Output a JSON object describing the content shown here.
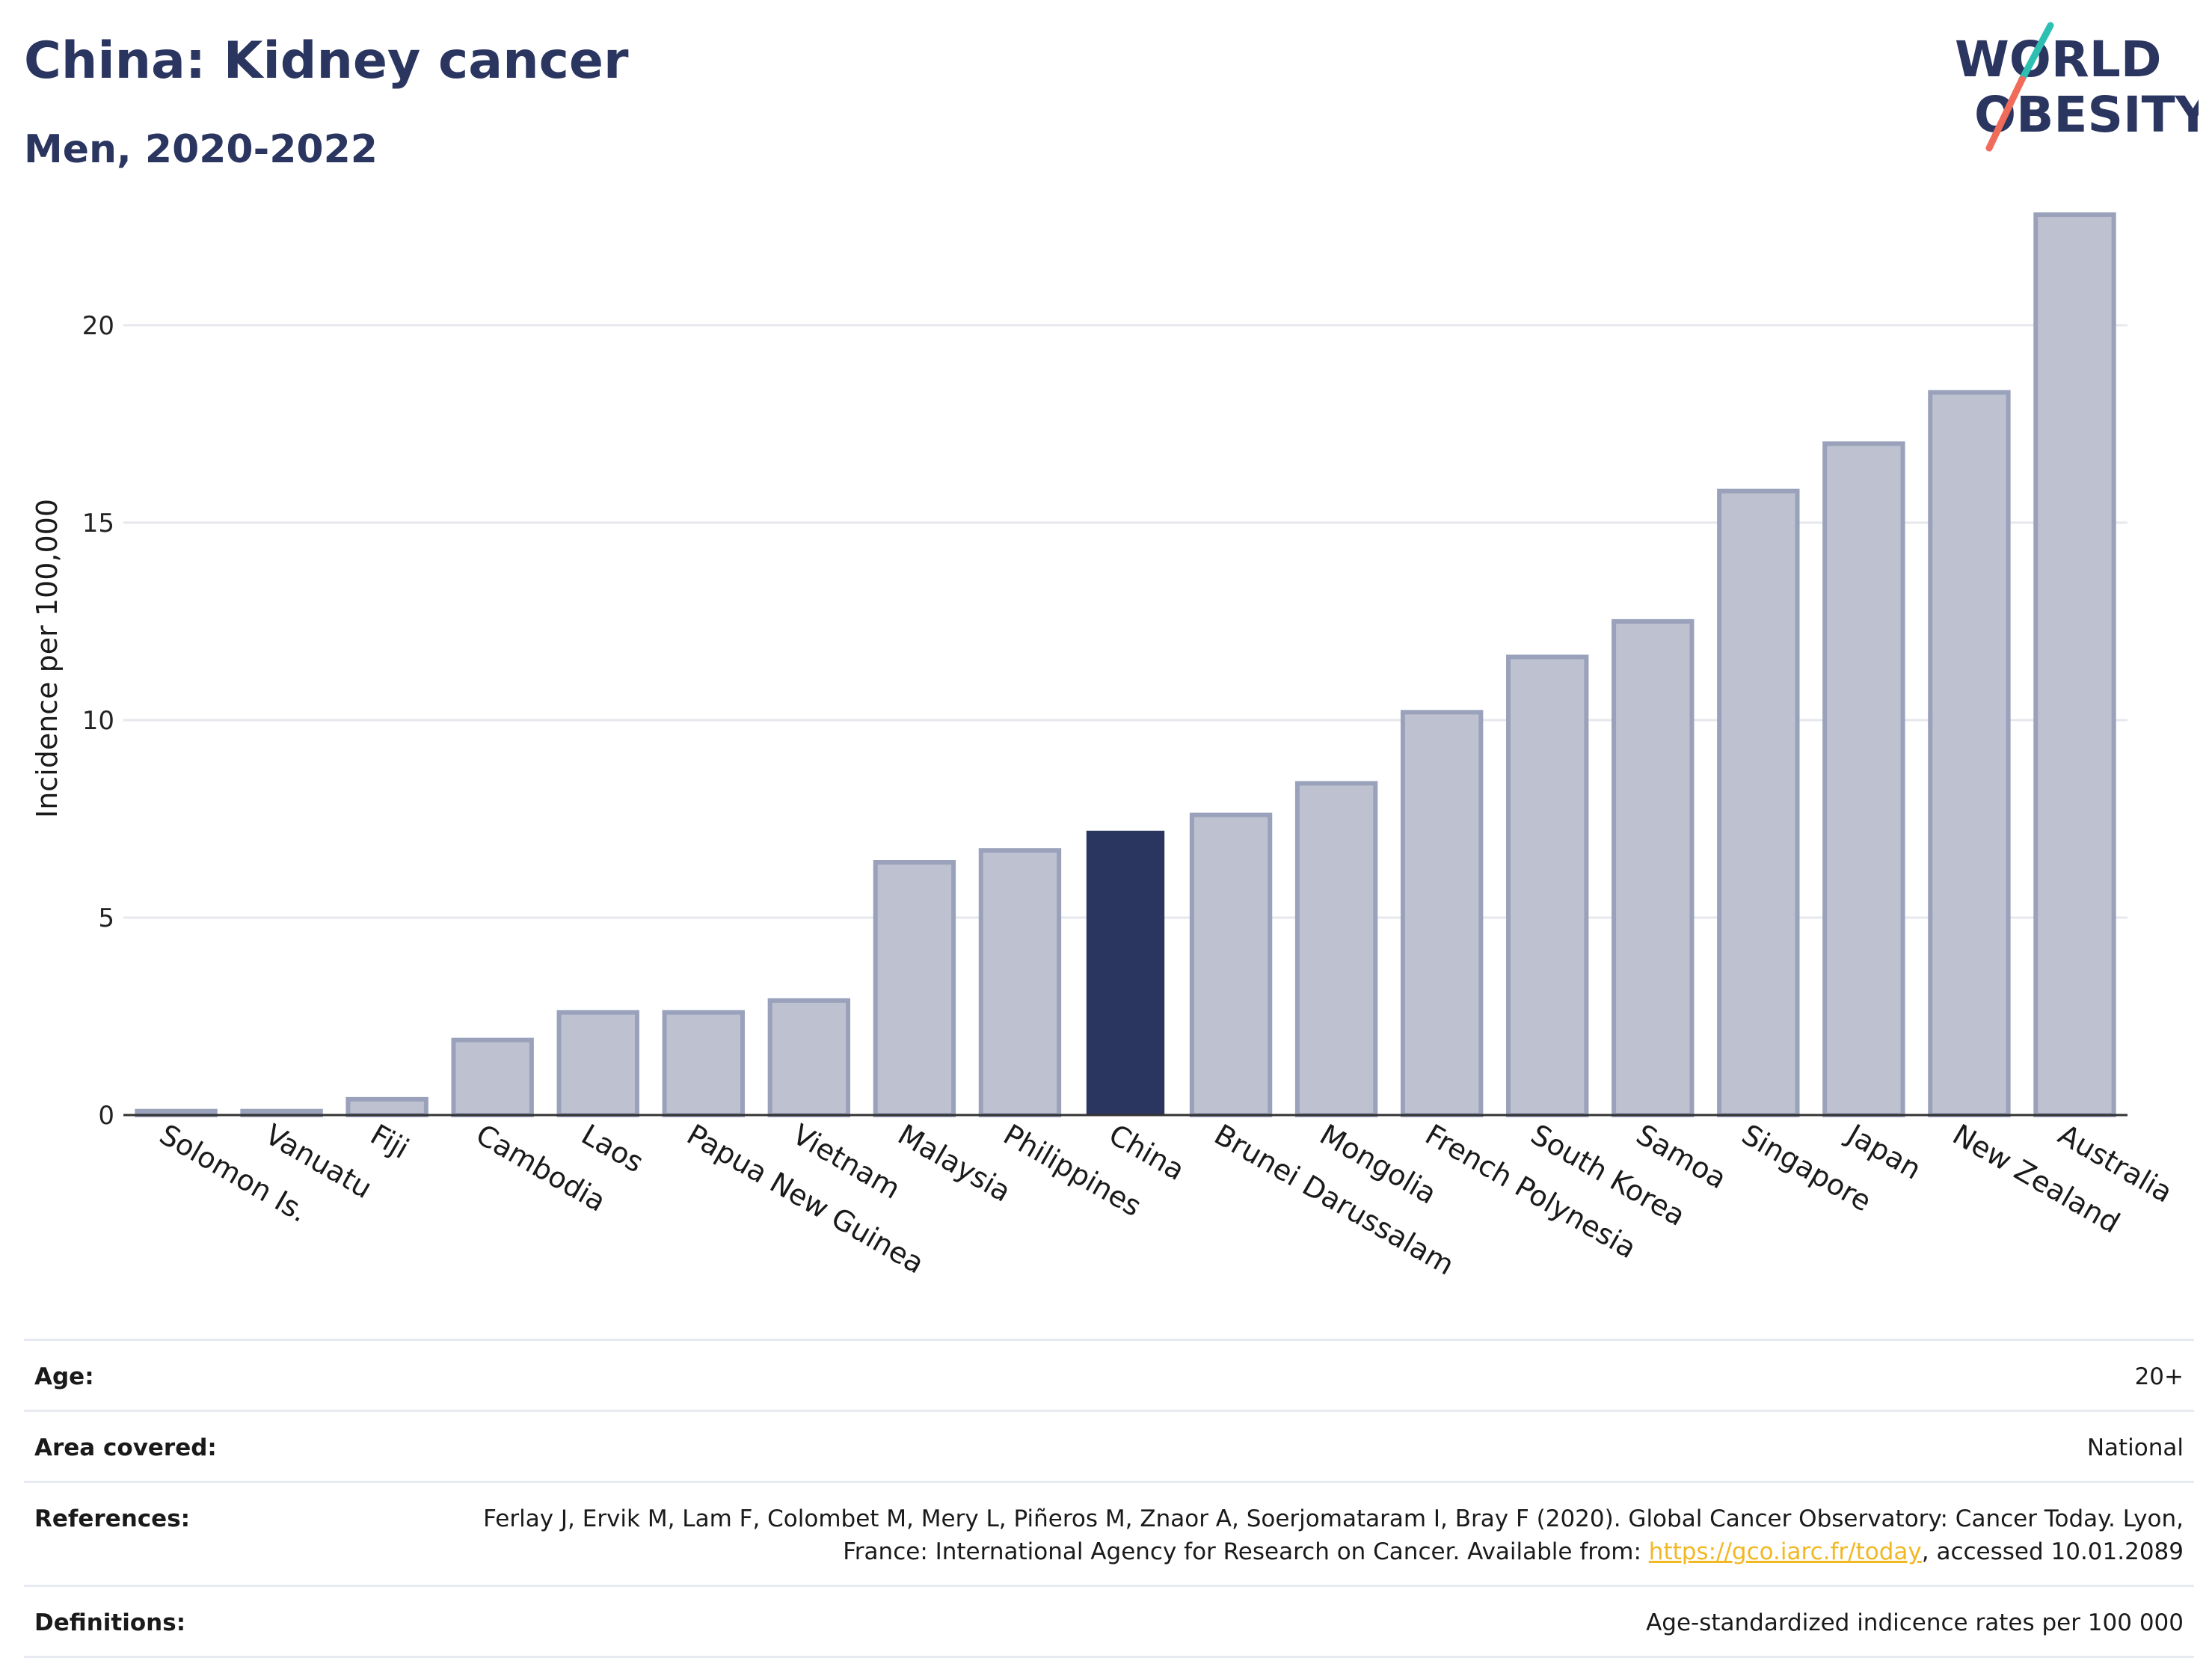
{
  "header": {
    "title": "China: Kidney cancer",
    "subtitle": "Men, 2020-2022"
  },
  "logo": {
    "line1": "WORLD",
    "line2": "OBESITY",
    "colors": {
      "text": "#2a3560",
      "slash_teal": "#2ebfb3",
      "slash_coral": "#f06b5a"
    }
  },
  "chart_data": {
    "type": "bar",
    "title": "",
    "xlabel": "",
    "ylabel": "Incidence per 100,000",
    "ylim": [
      0,
      23.5
    ],
    "yticks": [
      0,
      5,
      10,
      15,
      20
    ],
    "grid": true,
    "legend": "none",
    "highlight": "China",
    "colors": {
      "bar": "#bec2d0",
      "bar_border": "#9aa1ba",
      "highlight": "#2a3560",
      "grid": "#e6e8ee",
      "axis": "#333333"
    },
    "categories": [
      "Solomon Is.",
      "Vanuatu",
      "Fiji",
      "Cambodia",
      "Laos",
      "Papua New Guinea",
      "Vietnam",
      "Malaysia",
      "Philippines",
      "China",
      "Brunei Darussalam",
      "Mongolia",
      "French Polynesia",
      "South Korea",
      "Samoa",
      "Singapore",
      "Japan",
      "New Zealand",
      "Australia"
    ],
    "values": [
      0.1,
      0.1,
      0.4,
      1.9,
      2.6,
      2.6,
      2.9,
      6.4,
      6.7,
      7.2,
      7.6,
      8.4,
      10.2,
      11.6,
      12.5,
      15.8,
      17.0,
      18.3,
      22.8
    ]
  },
  "info": {
    "rows": [
      {
        "label": "Age:",
        "value": "20+"
      },
      {
        "label": "Area covered:",
        "value": "National"
      },
      {
        "label": "References:",
        "value_prefix": "Ferlay J, Ervik M, Lam F, Colombet M, Mery L, Piñeros M, Znaor A, Soerjomataram I, Bray F (2020). Global Cancer Observatory: Cancer Today. Lyon, France: International Agency for Research on Cancer. Available from: ",
        "link": "https://gco.iarc.fr/today",
        "value_suffix": ", accessed 10.01.2089"
      },
      {
        "label": "Definitions:",
        "value": "Age-standardized indicence rates per 100 000"
      }
    ]
  }
}
